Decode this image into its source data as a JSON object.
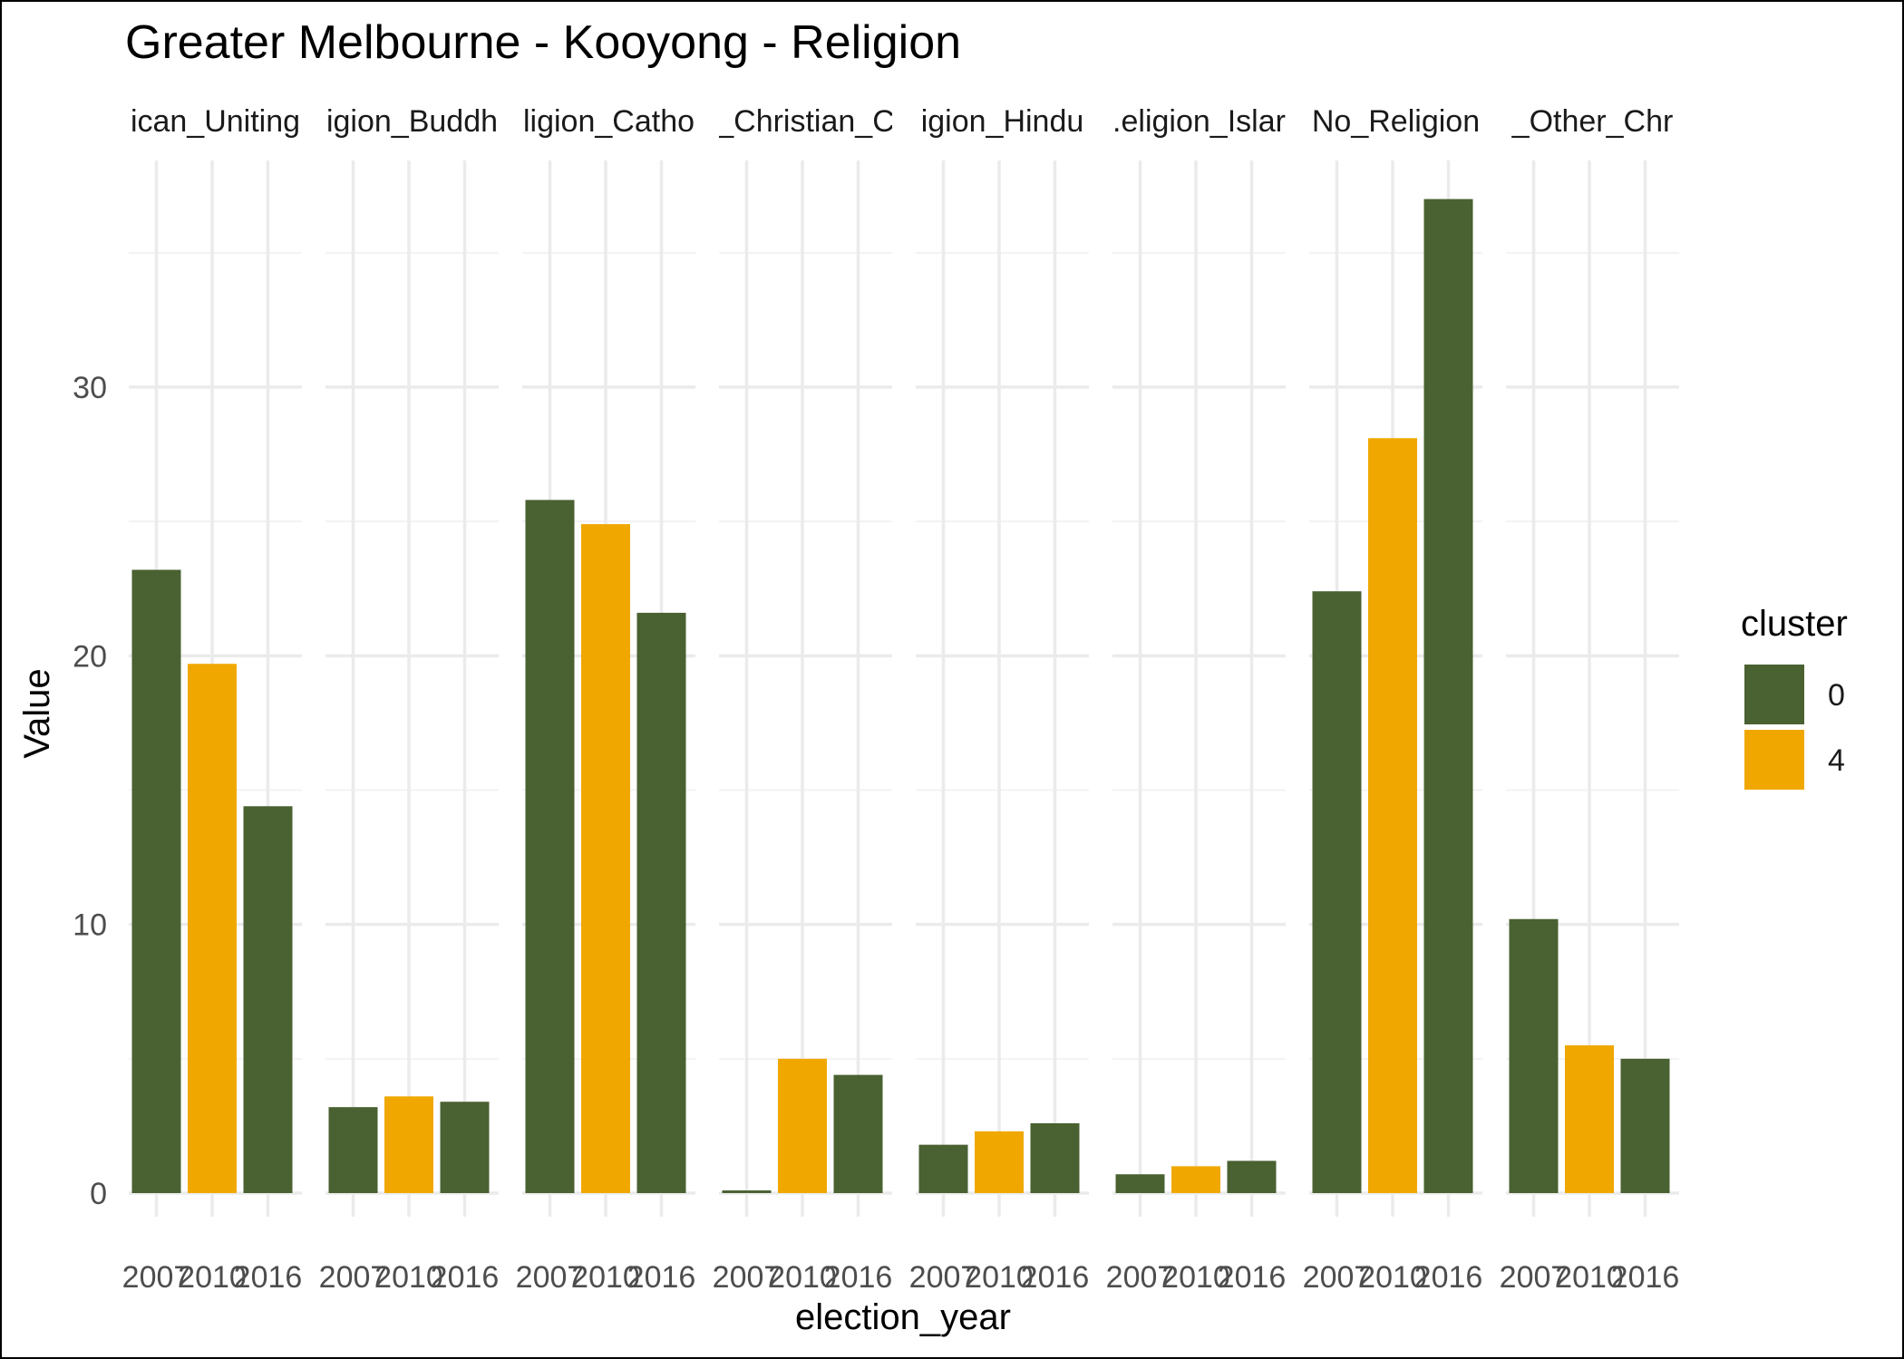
{
  "chart_data": {
    "type": "bar",
    "title": "Greater Melbourne - Kooyong - Religion",
    "xlabel": "election_year",
    "ylabel": "Value",
    "ylim": [
      0,
      37
    ],
    "yticks": [
      0,
      10,
      20,
      30
    ],
    "grid": true,
    "legend_position": "right",
    "legend": {
      "title": "cluster",
      "entries": [
        {
          "label": "0",
          "color": "#4a6132"
        },
        {
          "label": "4",
          "color": "#f0a800"
        }
      ]
    },
    "categories": [
      "2007",
      "2010",
      "2016"
    ],
    "facets": [
      {
        "strip_label": "ican_Uniting",
        "values": [
          23.2,
          19.7,
          14.4
        ],
        "clusters": [
          "0",
          "4",
          "0"
        ]
      },
      {
        "strip_label": "igion_Buddh",
        "values": [
          3.2,
          3.6,
          3.4
        ],
        "clusters": [
          "0",
          "4",
          "0"
        ]
      },
      {
        "strip_label": "ligion_Catho",
        "values": [
          25.8,
          24.9,
          21.6
        ],
        "clusters": [
          "0",
          "4",
          "0"
        ]
      },
      {
        "strip_label": "_Christian_C",
        "values": [
          0.1,
          5.0,
          4.4
        ],
        "clusters": [
          "0",
          "4",
          "0"
        ]
      },
      {
        "strip_label": "igion_Hindu",
        "values": [
          1.8,
          2.3,
          2.6
        ],
        "clusters": [
          "0",
          "4",
          "0"
        ]
      },
      {
        "strip_label": ".eligion_Islar",
        "values": [
          0.7,
          1.0,
          1.2
        ],
        "clusters": [
          "0",
          "4",
          "0"
        ]
      },
      {
        "strip_label": "No_Religion",
        "values": [
          22.4,
          28.1,
          37.0
        ],
        "clusters": [
          "0",
          "4",
          "0"
        ]
      },
      {
        "strip_label": "_Other_Chr",
        "values": [
          10.2,
          5.5,
          5.0
        ],
        "clusters": [
          "0",
          "4",
          "0"
        ]
      }
    ]
  }
}
